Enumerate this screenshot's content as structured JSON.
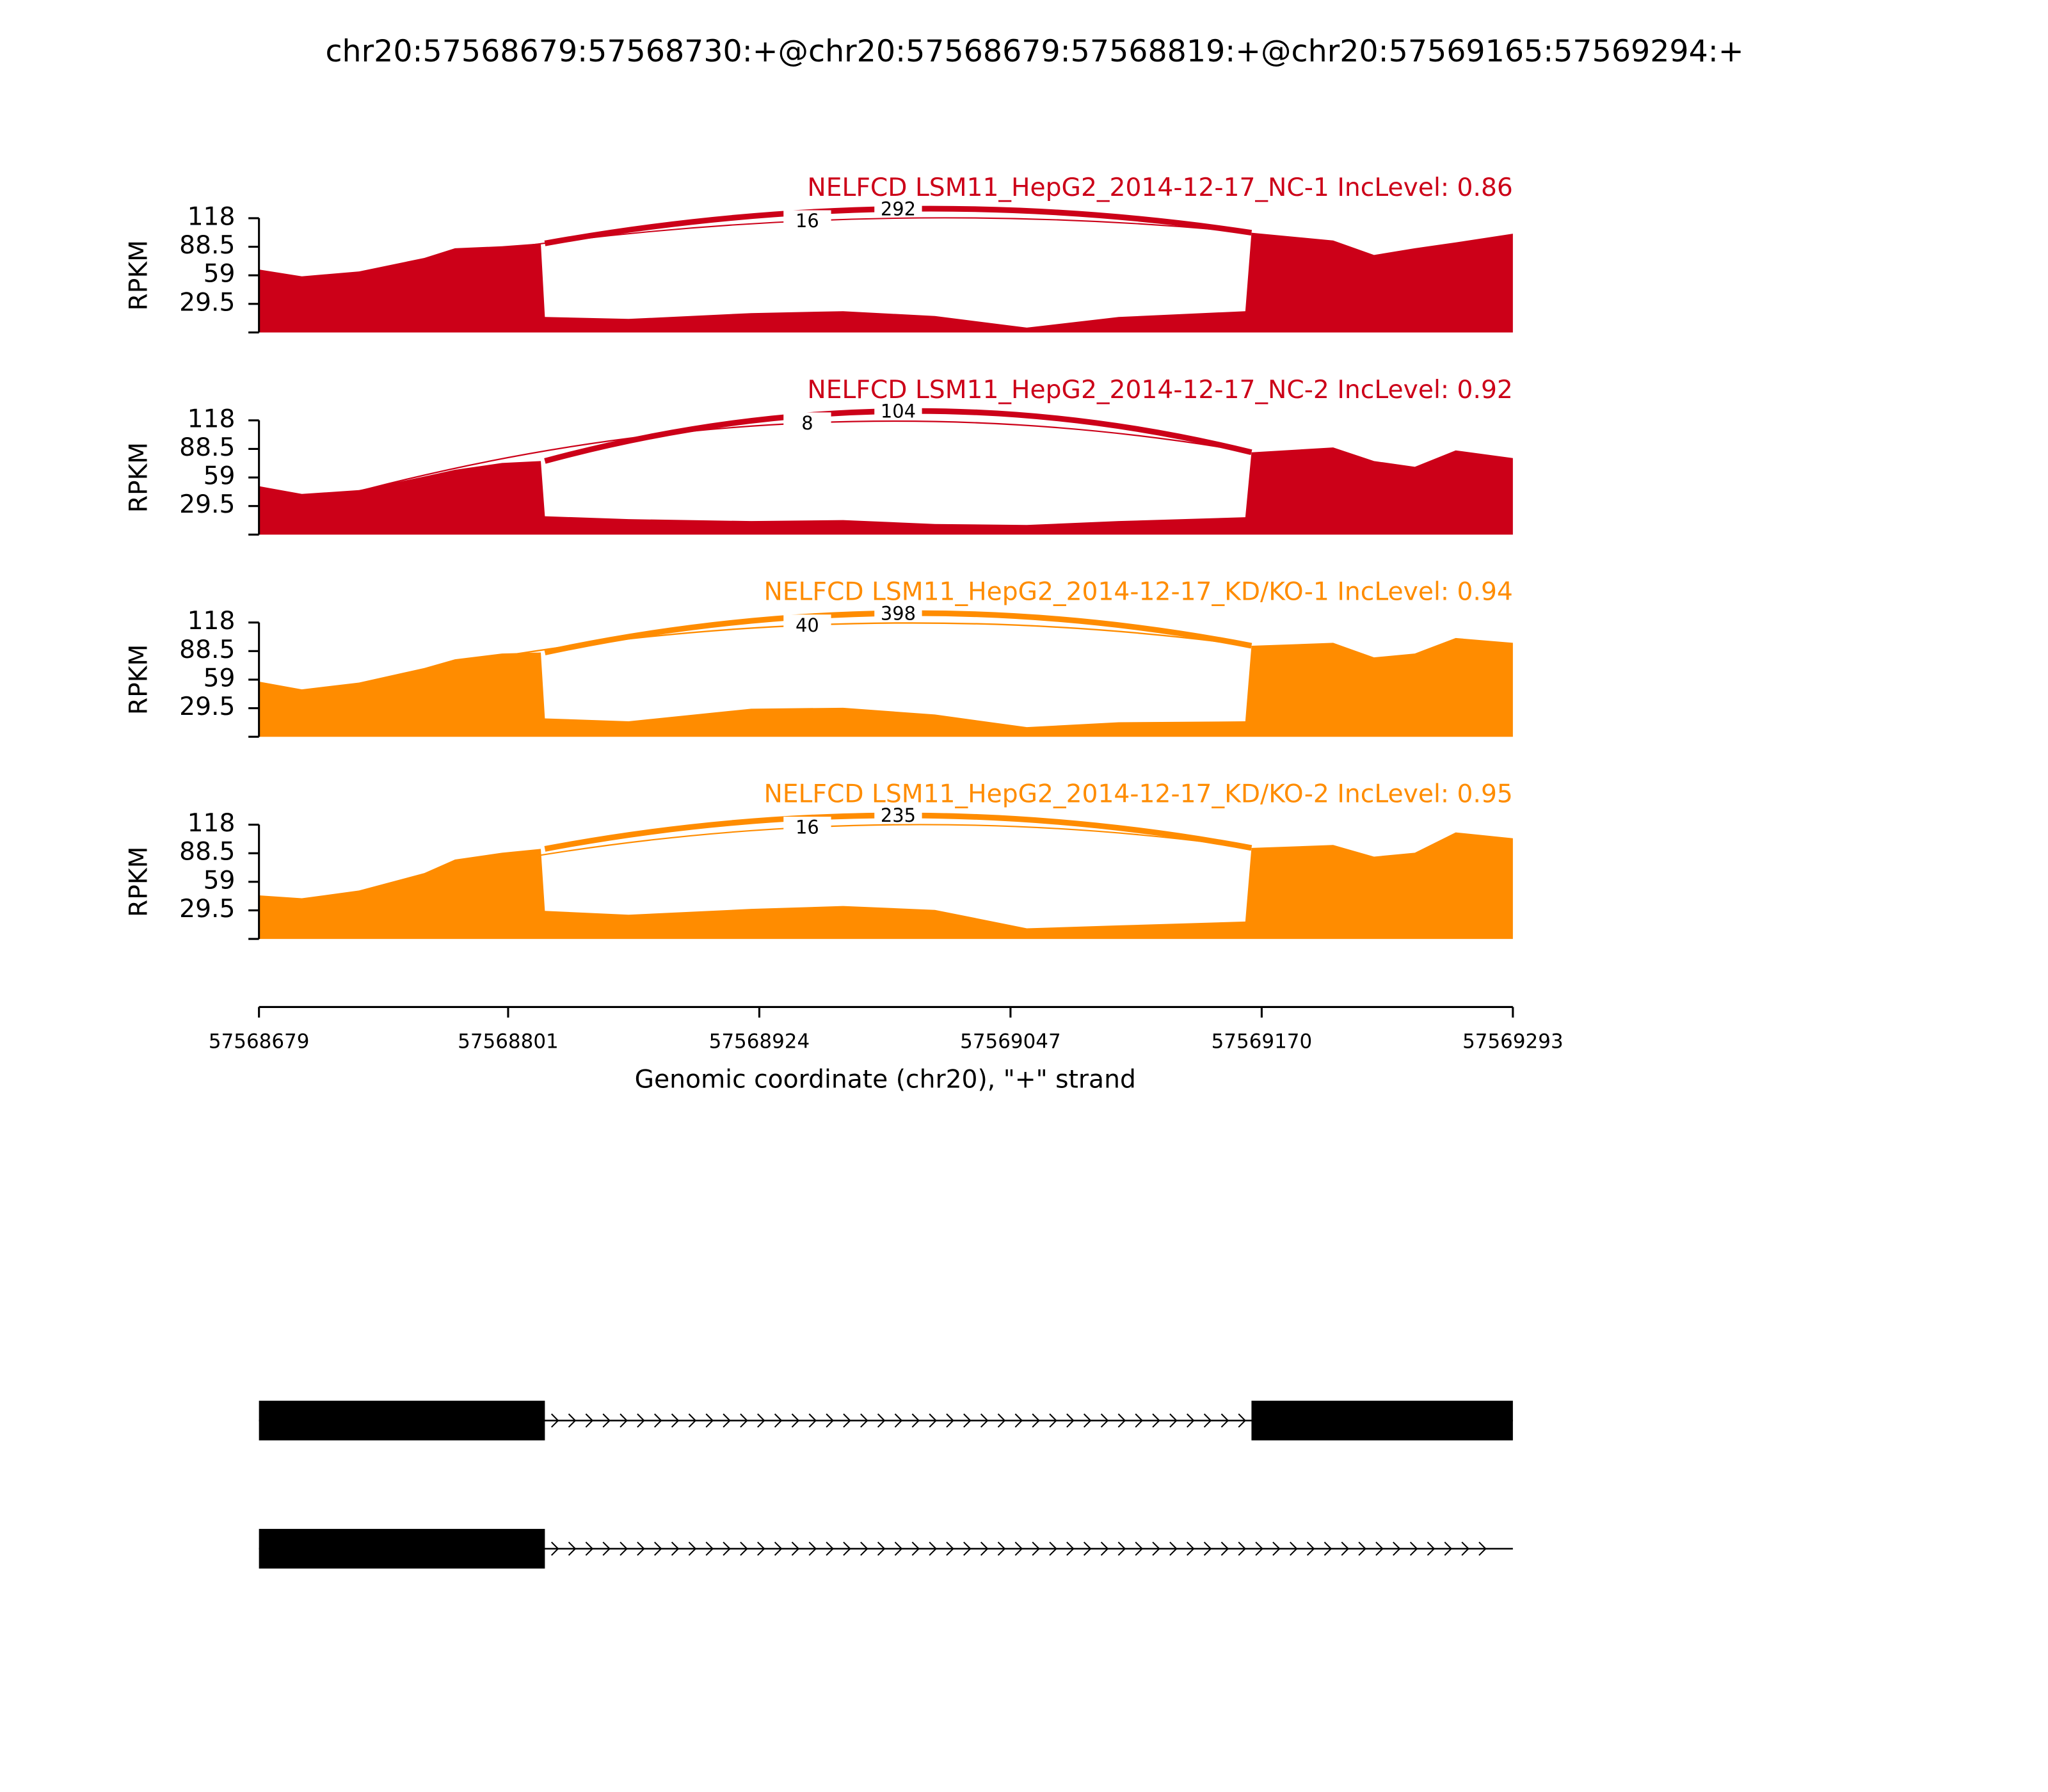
{
  "chart_data": {
    "type": "sashimi",
    "title": "chr20:57568679:57568730:+@chr20:57568679:57568819:+@chr20:57569165:57569294:+",
    "x_label": "Genomic coordinate (chr20), \"+\" strand",
    "y_label": "RPKM",
    "xlim": [
      57568679,
      57569293
    ],
    "xticks": [
      57568679,
      57568801,
      57568924,
      57569047,
      57569170,
      57569293
    ],
    "ylim": [
      0,
      118
    ],
    "yticks": [
      29.5,
      59,
      88.5,
      118
    ],
    "x": [
      57568679,
      57568700,
      57568728,
      57568760,
      57568775,
      57568798,
      57568817,
      57568819,
      57568860,
      57568920,
      57568965,
      57569010,
      57569055,
      57569100,
      57569162,
      57569165,
      57569205,
      57569225,
      57569245,
      57569265,
      57569293
    ],
    "panels": [
      {
        "title": "NELFCD LSM11_HepG2_2014-12-17_NC-1 IncLevel: 0.86",
        "color": "#cc0018",
        "values": [
          65,
          58,
          63,
          77,
          87,
          89,
          92,
          16,
          14,
          20,
          22,
          17,
          5,
          16,
          22,
          103,
          95,
          80,
          87,
          93,
          102
        ],
        "junctions": [
          {
            "start": 57568819,
            "end": 57569165,
            "count": 292
          },
          {
            "start": 57568730,
            "end": 57569165,
            "count": 16
          }
        ]
      },
      {
        "title": "NELFCD LSM11_HepG2_2014-12-17_NC-2 IncLevel: 0.92",
        "color": "#cc0018",
        "values": [
          50,
          42,
          46,
          60,
          67,
          74,
          76,
          19,
          16,
          14,
          15,
          11,
          10,
          14,
          18,
          85,
          90,
          76,
          70,
          87,
          79
        ],
        "junctions": [
          {
            "start": 57568819,
            "end": 57569165,
            "count": 104
          },
          {
            "start": 57568730,
            "end": 57569165,
            "count": 8
          }
        ]
      },
      {
        "title": "NELFCD LSM11_HepG2_2014-12-17_KD/KO-1 IncLevel: 0.94",
        "color": "#ff8c00",
        "values": [
          57,
          49,
          56,
          71,
          80,
          86,
          87,
          19,
          16,
          29,
          30,
          23,
          10,
          15,
          16,
          94,
          97,
          82,
          86,
          102,
          97
        ],
        "junctions": [
          {
            "start": 57568819,
            "end": 57569165,
            "count": 398
          },
          {
            "start": 57568730,
            "end": 57569165,
            "count": 40
          }
        ]
      },
      {
        "title": "NELFCD LSM11_HepG2_2014-12-17_KD/KO-2 IncLevel: 0.95",
        "color": "#ff8c00",
        "values": [
          45,
          42,
          50,
          68,
          82,
          89,
          93,
          29,
          25,
          31,
          34,
          30,
          11,
          14,
          18,
          94,
          97,
          85,
          89,
          110,
          104
        ],
        "junctions": [
          {
            "start": 57568819,
            "end": 57569165,
            "count": 235
          },
          {
            "start": 57568730,
            "end": 57569165,
            "count": 16
          }
        ]
      }
    ],
    "transcripts": [
      {
        "start": 57568679,
        "end": 57569293,
        "exons": [
          [
            57568679,
            57568819
          ],
          [
            57569165,
            57569293
          ]
        ]
      },
      {
        "start": 57568679,
        "end": 57569293,
        "exons": [
          [
            57568679,
            57568819
          ]
        ]
      }
    ]
  }
}
